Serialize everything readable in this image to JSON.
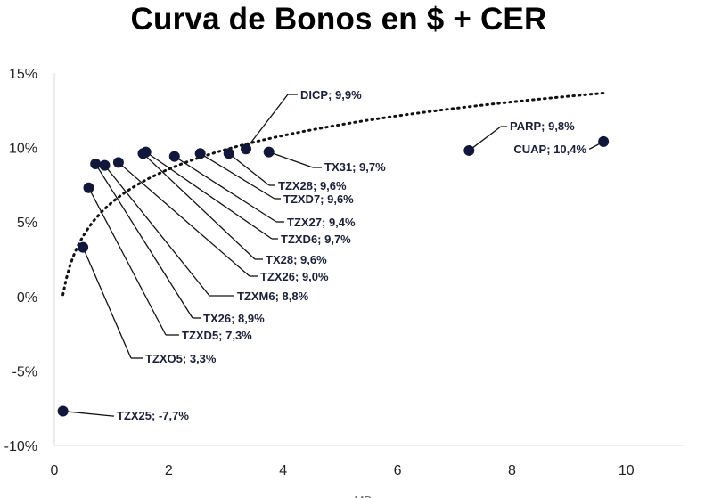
{
  "chart_data": {
    "type": "scatter",
    "title": "Curva de Bonos en $ + CER",
    "xlabel": "MD",
    "ylabel": "",
    "xlim": [
      0,
      11
    ],
    "ylim": [
      -10,
      15
    ],
    "x_ticks": [
      "0",
      "2",
      "4",
      "6",
      "8",
      "10"
    ],
    "x_tick_values": [
      0,
      2,
      4,
      6,
      8,
      10
    ],
    "y_ticks": [
      "15%",
      "10%",
      "5%",
      "0%",
      "-5%",
      "-10%"
    ],
    "y_tick_values": [
      15,
      10,
      5,
      0,
      -5,
      -10
    ],
    "grid": false,
    "legend": "none",
    "marker_color": "#10173a",
    "trendline": {
      "type": "logarithmic",
      "style": "dotted",
      "x_range": [
        0.15,
        9.6
      ]
    },
    "points": [
      {
        "label": "TZX25; -7,7%",
        "x": 0.15,
        "y": -7.7
      },
      {
        "label": "TZXO5; 3,3%",
        "x": 0.5,
        "y": 3.3
      },
      {
        "label": "TZXD5; 7,3%",
        "x": 0.6,
        "y": 7.3
      },
      {
        "label": "TX26; 8,9%",
        "x": 0.72,
        "y": 8.9
      },
      {
        "label": "TZXM6; 8,8%",
        "x": 0.88,
        "y": 8.8
      },
      {
        "label": "TZX26; 9,0%",
        "x": 1.12,
        "y": 9.0
      },
      {
        "label": "TX28; 9,6%",
        "x": 1.55,
        "y": 9.6
      },
      {
        "label": "TZXD6; 9,7%",
        "x": 1.6,
        "y": 9.7
      },
      {
        "label": "TZX27; 9,4%",
        "x": 2.1,
        "y": 9.4
      },
      {
        "label": "TZXD7; 9,6%",
        "x": 2.55,
        "y": 9.6
      },
      {
        "label": "TZX28; 9,6%",
        "x": 3.05,
        "y": 9.6
      },
      {
        "label": "DICP; 9,9%",
        "x": 3.35,
        "y": 9.9
      },
      {
        "label": "TX31; 9,7%",
        "x": 3.75,
        "y": 9.7
      },
      {
        "label": "PARP; 9,8%",
        "x": 7.25,
        "y": 9.8
      },
      {
        "label": "CUAP; 10,4%",
        "x": 9.6,
        "y": 10.4
      }
    ]
  }
}
